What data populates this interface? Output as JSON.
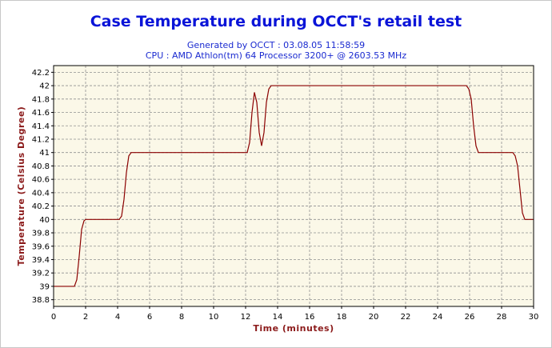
{
  "colors": {
    "title": "#0a14d8",
    "subtitle": "#1a2ad0",
    "plot_background": "#fbf8e8",
    "grid": "#909090",
    "line": "#8b0000",
    "axis_label": "#8b1a1a"
  },
  "chart_data": {
    "type": "line",
    "title": "Case Temperature during OCCT's retail test",
    "subtitle_lines": [
      "Generated by OCCT : 03.08.05 11:58:59",
      "CPU : AMD Athlon(tm) 64 Processor 3200+ @ 2603.53 MHz"
    ],
    "xlabel": "Time (minutes)",
    "ylabel": "Temperature (Celsius Degree)",
    "xlim": [
      0,
      30
    ],
    "ylim": [
      38.7,
      42.3
    ],
    "x_ticks": [
      0,
      2,
      4,
      6,
      8,
      10,
      12,
      14,
      16,
      18,
      20,
      22,
      24,
      26,
      28,
      30
    ],
    "y_ticks": [
      38.8,
      39,
      39.2,
      39.4,
      39.6,
      39.8,
      40,
      40.2,
      40.4,
      40.6,
      40.8,
      41,
      41.2,
      41.4,
      41.6,
      41.8,
      42,
      42.2
    ],
    "y_tick_labels": [
      "38.8",
      "39",
      "39.2",
      "39.4",
      "39.6",
      "39.8",
      "40",
      "40.2",
      "40.4",
      "40.6",
      "40.8",
      "41",
      "41.2",
      "41.4",
      "41.6",
      "41.8",
      "42",
      "42.2"
    ],
    "grid": true,
    "legend": "none",
    "series": [
      {
        "x": [
          0,
          1.3,
          1.45,
          1.6,
          1.75,
          1.9,
          2.0,
          4.1,
          4.25,
          4.4,
          4.55,
          4.7,
          4.85,
          12.1,
          12.25,
          12.4,
          12.55,
          12.7,
          12.85,
          13.0,
          13.15,
          13.3,
          13.45,
          13.6,
          13.75,
          25.8,
          25.95,
          26.1,
          26.25,
          26.4,
          26.55,
          26.7,
          28.7,
          28.85,
          29.0,
          29.15,
          29.3,
          29.45,
          29.6,
          30
        ],
        "y": [
          39.0,
          39.0,
          39.1,
          39.45,
          39.85,
          39.98,
          40.0,
          40.0,
          40.05,
          40.3,
          40.7,
          40.95,
          41.0,
          41.0,
          41.15,
          41.6,
          41.9,
          41.75,
          41.3,
          41.1,
          41.3,
          41.75,
          41.95,
          42.0,
          42.0,
          42.0,
          41.95,
          41.8,
          41.4,
          41.1,
          41.0,
          41.0,
          41.0,
          40.95,
          40.8,
          40.45,
          40.1,
          40.0,
          40.0,
          40.0
        ]
      }
    ]
  }
}
